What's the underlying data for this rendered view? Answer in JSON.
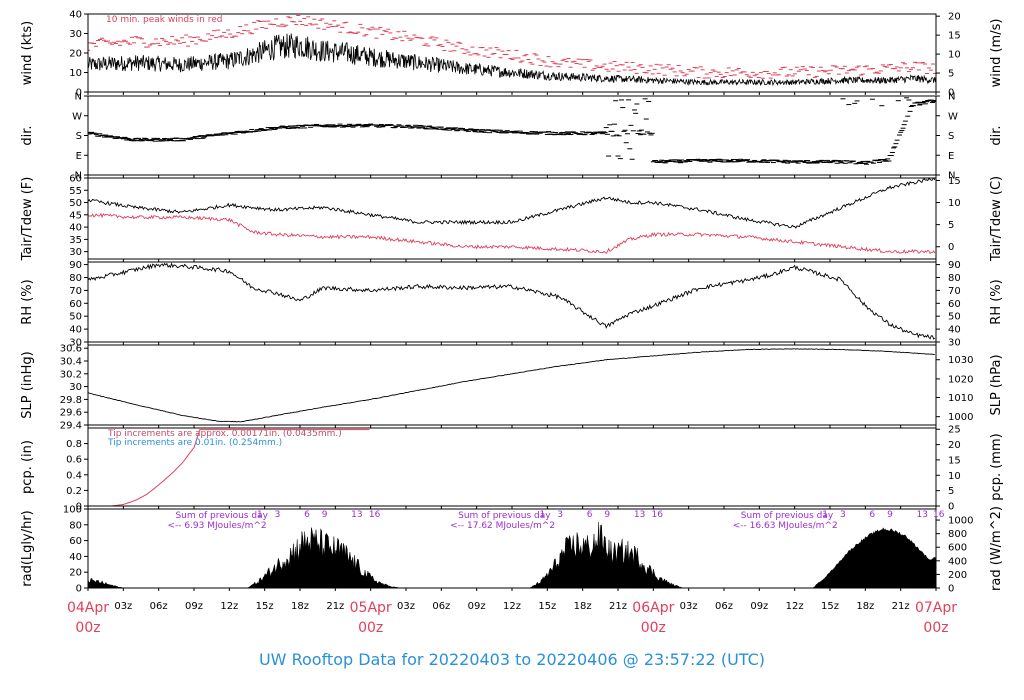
{
  "colors": {
    "trace": "#000000",
    "peak": "#e0405a",
    "dew": "#e0405a",
    "note_red": "#c24a6a",
    "note_blue": "#2a90d8",
    "note_purple": "#9b2fd0",
    "date": "#e0405a",
    "footer": "#2a90d8"
  },
  "footer": "UW Rooftop Data for 20220403  to  20220406 @ 23:57:22  (UTC)",
  "x_axis": {
    "hour_ticks": [
      "03z",
      "06z",
      "09z",
      "12z",
      "15z",
      "18z",
      "21z",
      "03z",
      "06z",
      "09z",
      "12z",
      "15z",
      "18z",
      "21z",
      "03z",
      "06z",
      "09z",
      "12z",
      "15z",
      "18z",
      "21z"
    ],
    "hour_tick_values": [
      3,
      6,
      9,
      12,
      15,
      18,
      21,
      27,
      30,
      33,
      36,
      39,
      42,
      45,
      51,
      54,
      57,
      60,
      63,
      66,
      69
    ],
    "date_labels": [
      {
        "date": "04Apr",
        "hour": "00z",
        "x": 0
      },
      {
        "date": "05Apr",
        "hour": "00z",
        "x": 24
      },
      {
        "date": "06Apr",
        "hour": "00z",
        "x": 48
      },
      {
        "date": "07Apr",
        "hour": "00z",
        "x": 72
      }
    ],
    "range": [
      0,
      72
    ]
  },
  "chart_data": [
    {
      "id": "wind",
      "type": "line",
      "ylabel_left": "wind (kts)",
      "ylabel_right": "wind (m/s)",
      "ylim": [
        0,
        40
      ],
      "left_ticks": [
        0,
        10,
        20,
        30,
        40
      ],
      "right_ticks": [
        0,
        5,
        10,
        15,
        20
      ],
      "right_tick_kts": [
        0,
        9.72,
        19.44,
        29.16,
        38.88
      ],
      "annotation": "10 min. peak winds in red",
      "series": [
        {
          "name": "wind",
          "style": "line",
          "x": [
            0,
            4,
            8,
            12,
            14,
            16,
            18,
            20,
            22,
            24,
            28,
            32,
            36,
            40,
            44,
            48,
            52,
            56,
            60,
            64,
            68,
            70,
            72
          ],
          "y": [
            14,
            15,
            14,
            16,
            19,
            23,
            24,
            21,
            20,
            18,
            15,
            12,
            10,
            8,
            7,
            6,
            5,
            5,
            5,
            6,
            6,
            7,
            6
          ]
        },
        {
          "name": "10 min. peak winds",
          "style": "dash",
          "x": [
            0,
            4,
            8,
            12,
            14,
            16,
            18,
            20,
            22,
            24,
            28,
            32,
            36,
            40,
            44,
            48,
            52,
            56,
            60,
            64,
            68,
            70,
            72
          ],
          "y": [
            24,
            26,
            26,
            30,
            33,
            36,
            37,
            35,
            33,
            31,
            27,
            22,
            19,
            15,
            13,
            12,
            10,
            10,
            10,
            11,
            12,
            13,
            12
          ]
        }
      ]
    },
    {
      "id": "dir",
      "type": "scatter",
      "ylabel_left": "dir.",
      "ylabel_right": "dir.",
      "ylim": [
        0,
        360
      ],
      "left_tick_values": [
        0,
        90,
        180,
        270,
        360
      ],
      "left_tick_labels": [
        "N",
        "E",
        "S",
        "W",
        "N"
      ],
      "series": [
        {
          "name": "direction",
          "x": [
            0,
            4,
            8,
            12,
            16,
            20,
            24,
            28,
            32,
            36,
            40,
            44,
            46,
            48,
            52,
            56,
            60,
            64,
            66,
            68,
            70,
            72
          ],
          "y": [
            190,
            160,
            162,
            190,
            215,
            225,
            225,
            220,
            205,
            195,
            190,
            190,
            60,
            60,
            65,
            65,
            60,
            60,
            55,
            70,
            320,
            340
          ]
        }
      ]
    },
    {
      "id": "temp",
      "type": "line",
      "ylabel_left": "Tair/Tdew (F)",
      "ylabel_right": "Tair/Tdew (C)",
      "ylim": [
        27,
        60
      ],
      "left_ticks": [
        30,
        35,
        40,
        45,
        50,
        55,
        60
      ],
      "right_tick_labels": [
        0,
        5,
        10,
        15
      ],
      "right_tick_f": [
        32,
        41,
        50,
        59
      ],
      "series": [
        {
          "name": "Tair",
          "x": [
            0,
            4,
            8,
            12,
            16,
            20,
            24,
            28,
            32,
            36,
            40,
            44,
            46,
            48,
            52,
            56,
            60,
            64,
            68,
            72
          ],
          "y": [
            51,
            48,
            46,
            49,
            47,
            48,
            45,
            42,
            42,
            42,
            47,
            52,
            50,
            50,
            47,
            43,
            40,
            48,
            56,
            60
          ]
        },
        {
          "name": "Tdew",
          "x": [
            0,
            4,
            8,
            12,
            14,
            16,
            20,
            24,
            28,
            32,
            36,
            40,
            44,
            46,
            48,
            52,
            56,
            60,
            64,
            68,
            72
          ],
          "y": [
            45,
            44,
            44,
            43,
            38,
            37,
            36,
            36,
            34,
            32,
            32,
            31,
            30,
            35,
            37,
            37,
            36,
            34,
            32,
            30,
            30
          ]
        }
      ]
    },
    {
      "id": "rh",
      "type": "line",
      "ylabel_left": "RH (%)",
      "ylabel_right": "RH (%)",
      "ylim": [
        30,
        92
      ],
      "left_ticks": [
        30,
        40,
        50,
        60,
        70,
        80,
        90
      ],
      "right_ticks": [
        30,
        40,
        50,
        60,
        70,
        80,
        90
      ],
      "series": [
        {
          "name": "RH",
          "x": [
            0,
            3,
            6,
            9,
            12,
            14,
            16,
            18,
            20,
            24,
            28,
            32,
            36,
            40,
            44,
            46,
            48,
            52,
            56,
            58,
            60,
            64,
            66,
            68,
            70,
            72
          ],
          "y": [
            78,
            84,
            90,
            88,
            85,
            72,
            68,
            62,
            72,
            70,
            73,
            72,
            73,
            65,
            42,
            52,
            58,
            72,
            78,
            82,
            88,
            78,
            58,
            44,
            36,
            33
          ]
        }
      ]
    },
    {
      "id": "slp",
      "type": "line",
      "ylabel_left": "SLP (inHg)",
      "ylabel_right": "SLP (hPa)",
      "ylim": [
        29.4,
        30.65
      ],
      "left_ticks": [
        29.4,
        29.6,
        29.8,
        30.0,
        30.2,
        30.4,
        30.6
      ],
      "right_tick_labels": [
        1000,
        1010,
        1020,
        1030
      ],
      "right_tick_inhg": [
        29.53,
        29.83,
        30.12,
        30.42
      ],
      "series": [
        {
          "name": "SLP",
          "x": [
            0,
            4,
            8,
            11,
            13,
            16,
            20,
            24,
            28,
            32,
            36,
            40,
            44,
            48,
            52,
            56,
            60,
            64,
            68,
            72
          ],
          "y": [
            29.9,
            29.72,
            29.55,
            29.46,
            29.45,
            29.55,
            29.68,
            29.8,
            29.94,
            30.08,
            30.2,
            30.32,
            30.42,
            30.48,
            30.54,
            30.58,
            30.59,
            30.58,
            30.55,
            30.5
          ]
        }
      ]
    },
    {
      "id": "pcp",
      "type": "line",
      "ylabel_left": "pcp. (in)",
      "ylabel_right": "pcp. (mm)",
      "ylim": [
        0,
        1.0
      ],
      "left_ticks": [
        0.0,
        0.2,
        0.4,
        0.6,
        0.8
      ],
      "right_tick_labels": [
        0,
        5,
        10,
        15,
        20,
        25
      ],
      "right_tick_in": [
        0,
        0.197,
        0.394,
        0.591,
        0.787,
        0.984
      ],
      "annotations": [
        "Tip increments are approx. 0.00171in. (0.0435mm.)",
        "Tip increments are 0.01in. (0.254mm.)"
      ],
      "series": [
        {
          "name": "precip",
          "x": [
            0,
            2,
            3,
            4,
            5,
            6,
            7,
            8,
            9,
            9.5,
            24
          ],
          "y": [
            0.0,
            0.0,
            0.02,
            0.07,
            0.15,
            0.27,
            0.4,
            0.55,
            0.75,
            0.98,
            0.98
          ]
        }
      ]
    },
    {
      "id": "rad",
      "type": "area",
      "ylabel_left": "rad(Lgly/hr)",
      "ylabel_right": "rad (W/m^2)",
      "ylim": [
        0,
        100
      ],
      "left_ticks": [
        0,
        20,
        40,
        60,
        80,
        100
      ],
      "right_tick_labels": [
        0,
        200,
        400,
        600,
        800,
        1000
      ],
      "right_tick_lgly": [
        0,
        17.2,
        34.4,
        51.6,
        68.8,
        86.0
      ],
      "hour_marks": [
        "1",
        "3",
        "6",
        "9",
        "13",
        "16"
      ],
      "hour_mark_x": [
        [
          14.6,
          16.1,
          18.6,
          20.1,
          22.6,
          24.1
        ],
        [
          38.6,
          40.1,
          42.6,
          44.1,
          46.6,
          48.1
        ],
        [
          62.6,
          64.1,
          66.6,
          68.1,
          70.6,
          72.0
        ]
      ],
      "summaries": [
        {
          "title": "Sum of previous day",
          "value": "<-- 6.93 MJoules/m^2",
          "x": 7.0
        },
        {
          "title": "Sum of previous day",
          "value": "<-- 17.62 MJoules/m^2",
          "x": 31.0
        },
        {
          "title": "Sum of previous day",
          "value": "<-- 16.63 MJoules/m^2",
          "x": 55.0
        }
      ],
      "series": [
        {
          "name": "radiation",
          "x": [
            0,
            0.5,
            1,
            2,
            3,
            13.5,
            14.5,
            15.5,
            16.5,
            17.5,
            18.5,
            19.5,
            20.5,
            21.5,
            22.5,
            23.5,
            24.5,
            25.5,
            26.5,
            37.5,
            38.5,
            39.5,
            40.5,
            41.5,
            42.5,
            43.5,
            44.5,
            45.5,
            46.5,
            47.5,
            48.5,
            49.5,
            50.5,
            61.5,
            62.5,
            63.5,
            64.5,
            65.5,
            66.5,
            67.5,
            68.5,
            69.5,
            70.5,
            71.5,
            72
          ],
          "y": [
            12,
            10,
            9,
            4,
            0,
            0,
            10,
            25,
            40,
            55,
            70,
            68,
            60,
            55,
            40,
            22,
            10,
            3,
            0,
            0,
            10,
            30,
            55,
            65,
            60,
            75,
            50,
            55,
            48,
            30,
            15,
            6,
            0,
            0,
            12,
            28,
            45,
            58,
            68,
            75,
            72,
            65,
            50,
            35,
            40
          ]
        }
      ]
    }
  ]
}
